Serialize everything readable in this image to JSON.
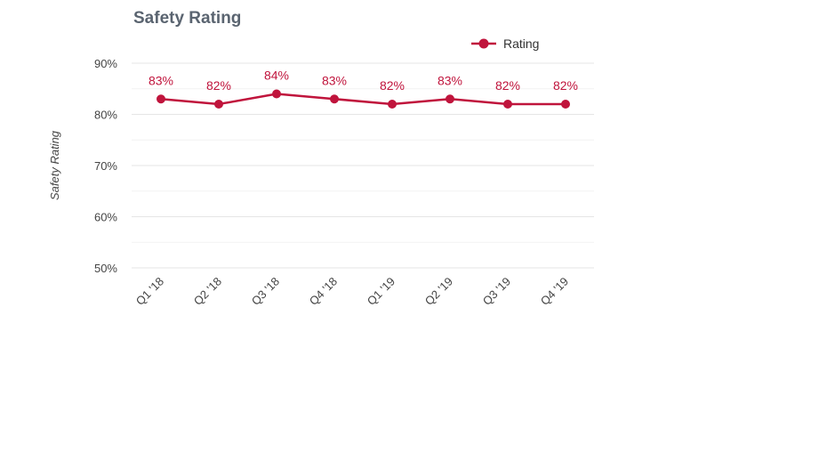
{
  "chart_data": {
    "type": "line",
    "title": "Safety Rating",
    "xlabel": "",
    "ylabel": "Safety Rating",
    "categories": [
      "Q1 '18",
      "Q2 '18",
      "Q3 '18",
      "Q4 '18",
      "Q1 '19",
      "Q2 '19",
      "Q3 '19",
      "Q4 '19"
    ],
    "series": [
      {
        "name": "Rating",
        "values": [
          83,
          82,
          84,
          83,
          82,
          83,
          82,
          82
        ],
        "color": "#c0143c"
      }
    ],
    "data_labels": [
      "83%",
      "82%",
      "84%",
      "83%",
      "82%",
      "83%",
      "82%",
      "82%"
    ],
    "ylim": [
      50,
      90
    ],
    "yticks": [
      50,
      60,
      70,
      80,
      90
    ],
    "ytick_labels": [
      "50%",
      "60%",
      "70%",
      "80%",
      "90%"
    ],
    "grid": true,
    "legend_position": "top-right",
    "colors": {
      "series": "#c0143c",
      "data_label": "#c0143c",
      "grid": "#e6e6e6",
      "minor_grid": "#f2f2f2",
      "axis_text": "#444444",
      "title": "#5a6470"
    }
  }
}
